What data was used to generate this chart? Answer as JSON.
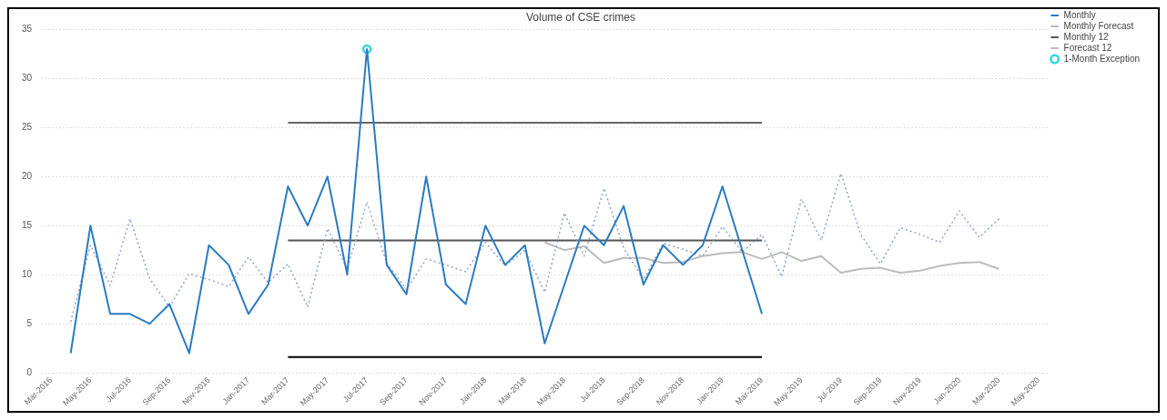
{
  "chart_data": {
    "type": "line",
    "title": "Volume of CSE crimes",
    "categories": [
      "Mar-2016",
      null,
      "May-2016",
      null,
      "Jul-2016",
      null,
      "Sep-2016",
      null,
      "Nov-2016",
      null,
      "Jan-2017",
      null,
      "Mar-2017",
      null,
      "May-2017",
      null,
      "Jul-2017",
      null,
      "Sep-2017",
      null,
      "Nov-2017",
      null,
      "Jan-2018",
      null,
      "Mar-2018",
      null,
      "May-2018",
      null,
      "Jul-2018",
      null,
      "Sep-2018",
      null,
      "Nov-2018",
      null,
      "Jan-2019",
      null,
      "Mar-2019",
      null,
      "May-2019",
      null,
      "Jul-2019",
      null,
      "Sep-2019",
      null,
      "Nov-2019",
      null,
      "Jan-2020",
      null,
      "Mar-2020",
      null,
      "May-2020"
    ],
    "series": [
      {
        "name": "Monthly",
        "type": "line",
        "color": "#2b7bc0",
        "line_style": "solid",
        "values": [
          null,
          2,
          15,
          6,
          6,
          5,
          7,
          2,
          13,
          11,
          6,
          9,
          19,
          15,
          20,
          10,
          33,
          11,
          8,
          20,
          9,
          7,
          15,
          11,
          13,
          3,
          9,
          15,
          13,
          17,
          9,
          13,
          11,
          13,
          19,
          12.5,
          6,
          null,
          null,
          null,
          null,
          null,
          null,
          null,
          null,
          null,
          null,
          null,
          null,
          null,
          null
        ]
      },
      {
        "name": "Monthly Forecast",
        "type": "line",
        "color": "#8fa3c7",
        "line_style": "dotted",
        "values": [
          null,
          5.2,
          13,
          8.9,
          15.7,
          9.6,
          6.7,
          10.1,
          9.5,
          8.8,
          11.8,
          9.2,
          11.1,
          6.7,
          14.7,
          10.6,
          17.4,
          11.2,
          8.5,
          11.6,
          11.0,
          10.3,
          13.3,
          10.9,
          12.5,
          8.2,
          16.3,
          11.9,
          18.8,
          12.7,
          9.5,
          13.2,
          12.6,
          11.9,
          14.9,
          12.3,
          14.1,
          9.8,
          17.7,
          13.5,
          20.3,
          14.1,
          11.1,
          14.8,
          14.1,
          13.3,
          16.5,
          13.8,
          15.7,
          null,
          null
        ]
      },
      {
        "name": "Monthly 12",
        "type": "line",
        "color": "#555555",
        "line_style": "solid",
        "values": [
          null,
          null,
          null,
          null,
          null,
          null,
          null,
          null,
          null,
          null,
          null,
          null,
          13.5,
          13.5,
          13.5,
          13.5,
          13.5,
          13.5,
          13.5,
          13.5,
          13.5,
          13.5,
          13.5,
          13.5,
          13.5,
          13.5,
          13.5,
          13.5,
          13.5,
          13.5,
          13.5,
          13.5,
          13.5,
          13.5,
          13.5,
          13.5,
          13.5,
          null,
          null,
          null,
          null,
          null,
          null,
          null,
          null,
          null,
          null,
          null,
          null,
          null,
          null
        ]
      },
      {
        "name": "Forecast 12",
        "type": "line",
        "color": "#bbbbbb",
        "line_style": "solid",
        "values": [
          null,
          null,
          null,
          null,
          null,
          null,
          null,
          null,
          null,
          null,
          null,
          null,
          null,
          null,
          null,
          null,
          null,
          null,
          null,
          null,
          null,
          null,
          null,
          null,
          null,
          13.3,
          12.5,
          12.9,
          11.2,
          11.7,
          11.7,
          11.2,
          11.3,
          11.9,
          12.2,
          12.3,
          11.6,
          12.3,
          11.4,
          11.9,
          10.2,
          10.6,
          10.7,
          10.2,
          10.4,
          10.9,
          11.2,
          11.3,
          10.6,
          null,
          null
        ]
      },
      {
        "name": "1-Month Exception",
        "type": "scatter",
        "color": "#33d6e0",
        "marker": "circle",
        "x": [
          "Jul-2017"
        ],
        "values": [
          33
        ]
      },
      {
        "type": "line",
        "color": "#666666",
        "line_style": "solid",
        "values": [
          null,
          null,
          null,
          null,
          null,
          null,
          null,
          null,
          null,
          null,
          null,
          null,
          25.5,
          25.5,
          25.5,
          25.5,
          25.5,
          25.5,
          25.5,
          25.5,
          25.5,
          25.5,
          25.5,
          25.5,
          25.5,
          25.5,
          25.5,
          25.5,
          25.5,
          25.5,
          25.5,
          25.5,
          25.5,
          25.5,
          25.5,
          25.5,
          25.5,
          null,
          null,
          null,
          null,
          null,
          null,
          null,
          null,
          null,
          null,
          null,
          null,
          null,
          null
        ]
      },
      {
        "type": "line",
        "color": "#000000",
        "line_style": "solid",
        "values": [
          null,
          null,
          null,
          null,
          null,
          null,
          null,
          null,
          null,
          null,
          null,
          null,
          1.6,
          1.6,
          1.6,
          1.6,
          1.6,
          1.6,
          1.6,
          1.6,
          1.6,
          1.6,
          1.6,
          1.6,
          1.6,
          1.6,
          1.6,
          1.6,
          1.6,
          1.6,
          1.6,
          1.6,
          1.6,
          1.6,
          1.6,
          1.6,
          1.6,
          null,
          null,
          null,
          null,
          null,
          null,
          null,
          null,
          null,
          null,
          null,
          null,
          null,
          null
        ]
      }
    ],
    "ylim": [
      0,
      35
    ],
    "yticks": [
      0,
      5,
      10,
      15,
      20,
      25,
      30,
      35
    ],
    "grid": "y",
    "legend": "top right",
    "marker": "none"
  }
}
